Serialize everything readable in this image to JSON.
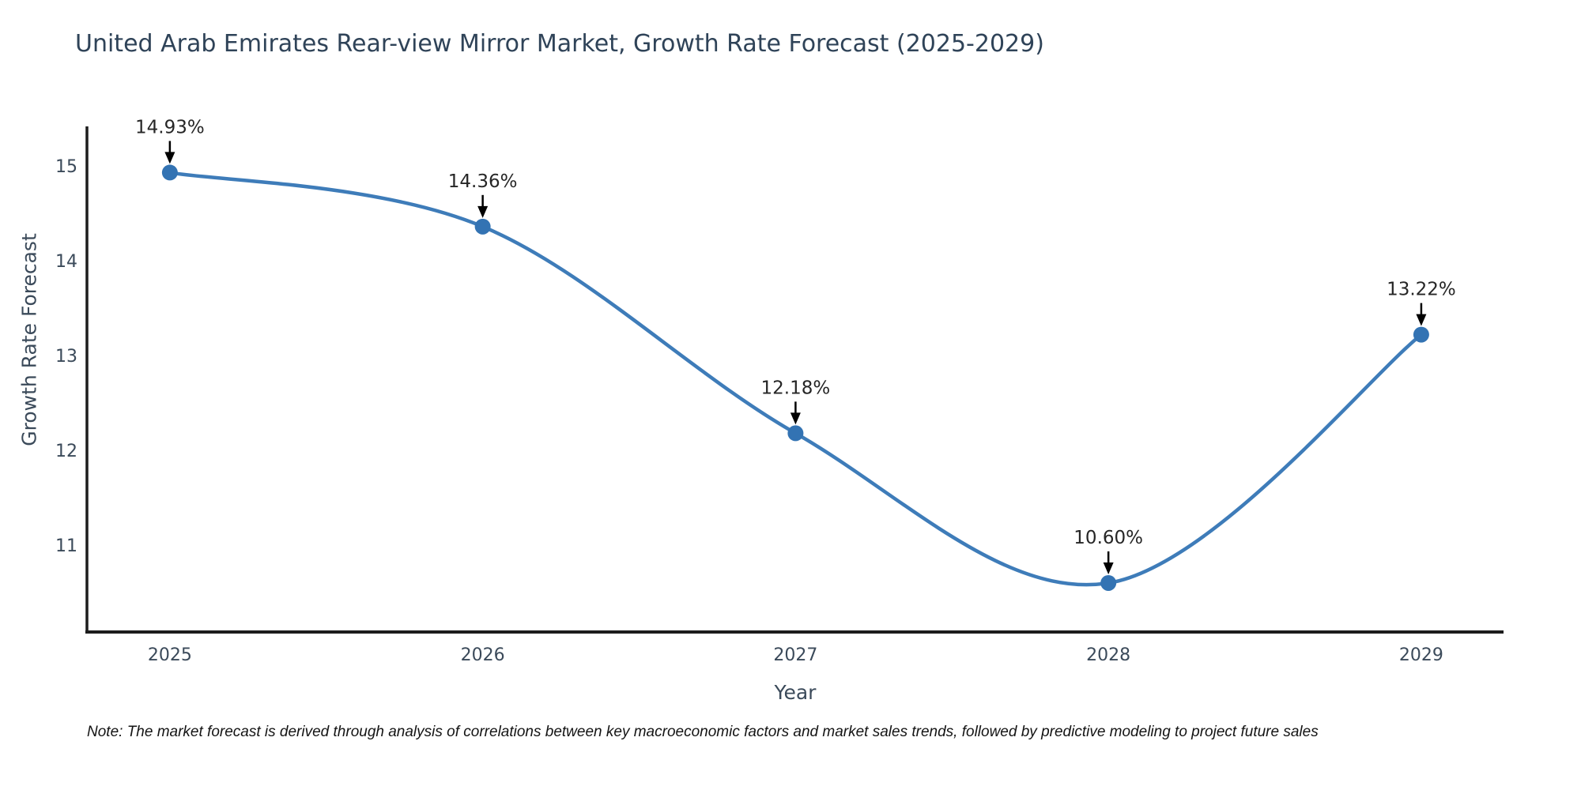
{
  "page": {
    "note": "Note: The market forecast is derived through analysis of correlations between key macroeconomic factors and market sales trends, followed by predictive modeling to project future sales"
  },
  "chart_data": {
    "type": "line",
    "title": "United Arab Emirates Rear-view Mirror Market, Growth Rate Forecast (2025-2029)",
    "xlabel": "Year",
    "ylabel": "Growth Rate Forecast",
    "x": [
      2025,
      2026,
      2027,
      2028,
      2029
    ],
    "values": [
      14.93,
      14.36,
      12.18,
      10.6,
      13.22
    ],
    "point_labels": [
      "14.93%",
      "14.36%",
      "12.18%",
      "10.60%",
      "13.22%"
    ],
    "yticks": [
      11,
      12,
      13,
      14,
      15
    ],
    "ylim": [
      10.083,
      15.417
    ],
    "xlim": [
      2024.735,
      2029.263
    ],
    "grid": false,
    "legend": false,
    "line_shape": "spline",
    "line_color": "#3e7cb9",
    "marker_color": "#3373b3",
    "axis_color": "#1c1c1c",
    "text_color": "#3b4a5a",
    "annotation_color": "#262626",
    "arrow_color": "#000000"
  }
}
